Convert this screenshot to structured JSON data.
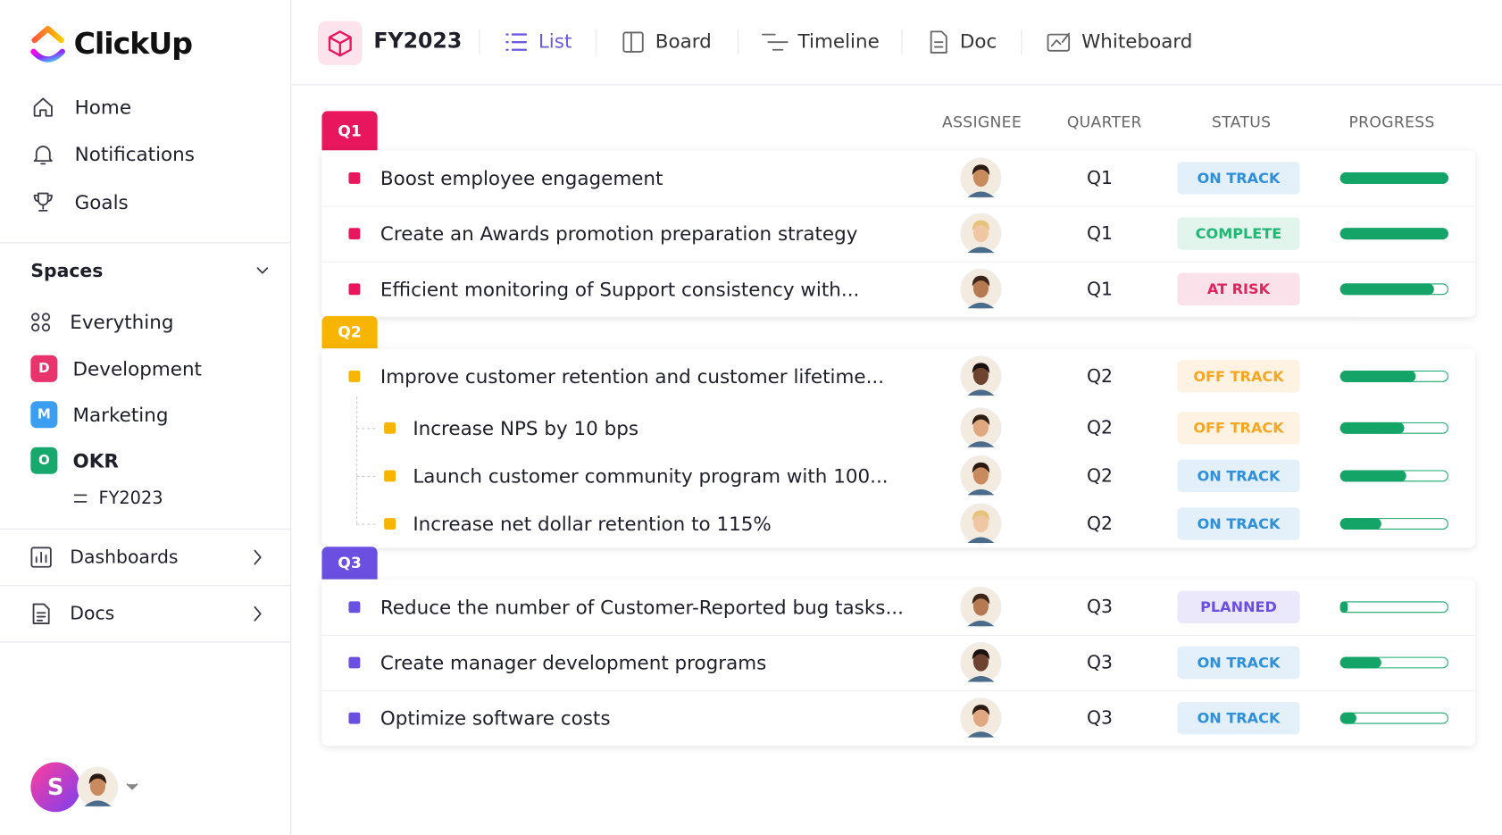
{
  "sidebar": {
    "logo": "ClickUp",
    "nav": [
      "Home",
      "Notifications",
      "Goals"
    ],
    "spaces_title": "Spaces",
    "spaces": [
      {
        "label": "Everything"
      },
      {
        "badge": "D",
        "label": "Development",
        "color": "#e8336c"
      },
      {
        "badge": "M",
        "label": "Marketing",
        "color": "#3b9ef0"
      },
      {
        "badge": "O",
        "label": "OKR",
        "color": "#17a86b"
      }
    ],
    "okr_child": "FY2023",
    "sections": [
      "Dashboards",
      "Docs"
    ],
    "user_initial": "S"
  },
  "header": {
    "title": "FY2023",
    "tabs": [
      "List",
      "Board",
      "Timeline",
      "Doc",
      "Whiteboard"
    ]
  },
  "table": {
    "columns": [
      "ASSIGNEE",
      "QUARTER",
      "STATUS",
      "PROGRESS"
    ],
    "groups": [
      {
        "label": "Q1",
        "color": "#e8175d",
        "rows": [
          {
            "name": "Boost employee engagement",
            "quarter": "Q1",
            "status": "ON TRACK",
            "status_color": "#2f8fd8",
            "progress": 100
          },
          {
            "name": "Create an Awards promotion preparation strategy",
            "quarter": "Q1",
            "status": "COMPLETE",
            "status_color": "#22b573",
            "progress": 100
          },
          {
            "name": "Efficient monitoring of Support consistency with...",
            "quarter": "Q1",
            "status": "AT RISK",
            "status_color": "#e0245e",
            "progress": 87
          }
        ]
      },
      {
        "label": "Q2",
        "color": "#f7b500",
        "rows": [
          {
            "name": "Improve customer retention and customer lifetime...",
            "quarter": "Q2",
            "status": "OFF TRACK",
            "status_color": "#f5a623",
            "progress": 70,
            "subtasks": [
              {
                "name": "Increase NPS by 10 bps",
                "quarter": "Q2",
                "status": "OFF TRACK",
                "status_color": "#f5a623",
                "progress": 59
              },
              {
                "name": "Launch customer community program with 100...",
                "quarter": "Q2",
                "status": "ON TRACK",
                "status_color": "#2f8fd8",
                "progress": 61
              },
              {
                "name": "Increase net dollar retention to 115%",
                "quarter": "Q2",
                "status": "ON TRACK",
                "status_color": "#2f8fd8",
                "progress": 38
              }
            ]
          }
        ]
      },
      {
        "label": "Q3",
        "color": "#6b4fe0",
        "rows": [
          {
            "name": "Reduce the number of Customer-Reported bug tasks...",
            "quarter": "Q3",
            "status": "PLANNED",
            "status_color": "#6b4fe0",
            "progress": 7
          },
          {
            "name": "Create manager development programs",
            "quarter": "Q3",
            "status": "ON TRACK",
            "status_color": "#2f8fd8",
            "progress": 38
          },
          {
            "name": "Optimize software costs",
            "quarter": "Q3",
            "status": "ON TRACK",
            "status_color": "#2f8fd8",
            "progress": 15
          }
        ]
      }
    ]
  }
}
